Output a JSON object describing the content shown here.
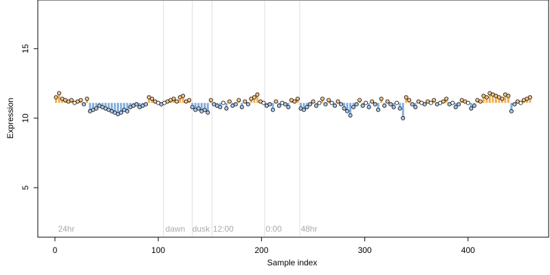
{
  "chart_data": {
    "type": "scatter",
    "xlabel": "Sample index",
    "ylabel": "Expression",
    "xlim": [
      -16.6,
      478
    ],
    "ylim": [
      1.44,
      18.5
    ],
    "xticks": [
      0,
      100,
      200,
      300,
      400
    ],
    "yticks": [
      5,
      10,
      15
    ],
    "reference_level": 11.1,
    "above_color": "#f0a030",
    "below_color": "#6a9fd8",
    "vlines": [
      105,
      133,
      152,
      203,
      237
    ],
    "annotations": [
      {
        "text": "24hr",
        "x": 3
      },
      {
        "text": "dawn",
        "x": 107
      },
      {
        "text": "dusk",
        "x": 133
      },
      {
        "text": "12:00",
        "x": 153
      },
      {
        "text": "0:00",
        "x": 204
      },
      {
        "text": "48hr",
        "x": 238
      }
    ],
    "x": [
      1,
      4,
      7,
      10,
      13,
      16,
      19,
      22,
      25,
      28,
      31,
      34,
      37,
      40,
      43,
      46,
      49,
      52,
      55,
      58,
      61,
      64,
      67,
      70,
      73,
      76,
      79,
      82,
      85,
      88,
      91,
      94,
      97,
      100,
      103,
      106,
      109,
      112,
      115,
      118,
      121,
      124,
      127,
      130,
      133,
      136,
      139,
      142,
      145,
      148,
      151,
      154,
      157,
      160,
      163,
      166,
      169,
      172,
      175,
      178,
      181,
      184,
      187,
      190,
      193,
      196,
      199,
      202,
      205,
      208,
      211,
      214,
      217,
      220,
      223,
      226,
      229,
      232,
      235,
      238,
      241,
      244,
      247,
      250,
      253,
      256,
      259,
      262,
      265,
      268,
      271,
      274,
      277,
      280,
      283,
      286,
      289,
      292,
      295,
      298,
      301,
      304,
      307,
      310,
      313,
      316,
      319,
      322,
      325,
      328,
      331,
      334,
      337,
      340,
      343,
      346,
      349,
      352,
      355,
      358,
      361,
      364,
      367,
      370,
      373,
      376,
      379,
      382,
      385,
      388,
      391,
      394,
      397,
      400,
      403,
      406,
      409,
      412,
      415,
      418,
      421,
      424,
      427,
      430,
      433,
      436,
      439,
      442,
      445,
      448,
      451,
      454,
      457,
      460
    ],
    "values": [
      11.5,
      11.8,
      11.4,
      11.3,
      11.2,
      11.3,
      11.1,
      11.2,
      11.3,
      11.0,
      11.4,
      10.5,
      10.6,
      10.7,
      10.9,
      10.8,
      10.7,
      10.6,
      10.5,
      10.4,
      10.3,
      10.4,
      10.6,
      10.5,
      10.8,
      10.9,
      11.0,
      10.8,
      10.9,
      11.0,
      11.5,
      11.4,
      11.2,
      11.1,
      11.0,
      11.1,
      11.2,
      11.3,
      11.4,
      11.2,
      11.5,
      11.6,
      11.2,
      11.3,
      10.8,
      10.6,
      10.7,
      10.5,
      10.6,
      10.4,
      11.3,
      11.0,
      10.9,
      10.8,
      11.1,
      10.7,
      11.2,
      10.9,
      11.0,
      11.3,
      10.8,
      11.2,
      11.0,
      11.4,
      11.5,
      11.7,
      11.2,
      11.1,
      10.9,
      11.0,
      10.6,
      11.2,
      10.9,
      11.1,
      11.0,
      10.8,
      11.3,
      11.2,
      11.4,
      10.7,
      10.6,
      10.8,
      11.0,
      11.2,
      10.9,
      11.1,
      11.4,
      11.0,
      11.3,
      11.1,
      10.9,
      11.2,
      11.0,
      10.7,
      10.5,
      10.2,
      10.8,
      11.0,
      11.3,
      10.9,
      11.1,
      10.8,
      11.2,
      11.0,
      10.6,
      11.4,
      10.9,
      11.2,
      11.0,
      10.8,
      11.1,
      10.7,
      10.0,
      11.5,
      11.3,
      11.0,
      10.8,
      11.2,
      11.1,
      11.0,
      11.2,
      11.1,
      11.3,
      11.0,
      11.1,
      11.2,
      11.4,
      11.0,
      11.1,
      10.8,
      11.0,
      11.3,
      11.2,
      11.1,
      10.7,
      10.9,
      11.3,
      11.2,
      11.6,
      11.5,
      11.8,
      11.7,
      11.6,
      11.5,
      11.4,
      11.7,
      11.6,
      10.5,
      11.0,
      11.2,
      11.1,
      11.3,
      11.4,
      11.5
    ]
  }
}
